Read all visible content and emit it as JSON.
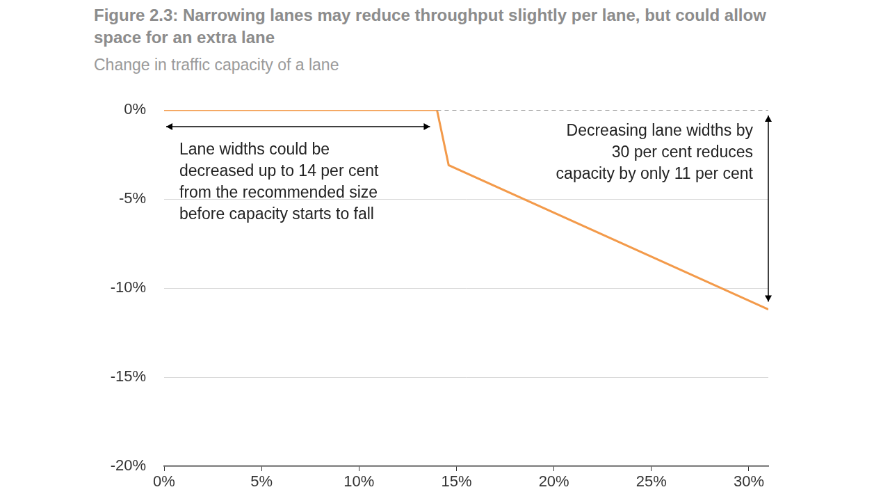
{
  "chart_data": {
    "type": "line",
    "title": "Figure 2.3: Narrowing lanes may reduce throughput slightly per lane, but could allow space for an extra lane",
    "subtitle": "Change in traffic capacity of a lane",
    "series": [
      {
        "x": [
          14,
          31
        ],
        "values": [
          0,
          0
        ],
        "color": "#999999",
        "line_style": "dashed"
      },
      {
        "x": [
          0,
          14,
          14.6,
          31
        ],
        "values": [
          0,
          0,
          -3.1,
          -11.2
        ],
        "color": "#f39a4a",
        "line_style": "solid"
      }
    ],
    "xlim": [
      0,
      31
    ],
    "xticks": [
      {
        "value": 0,
        "label": "0%"
      },
      {
        "value": 5,
        "label": "5%"
      },
      {
        "value": 10,
        "label": "10%"
      },
      {
        "value": 15,
        "label": "15%"
      },
      {
        "value": 20,
        "label": "20%"
      },
      {
        "value": 25,
        "label": "25%"
      },
      {
        "value": 30,
        "label": "30%"
      }
    ],
    "ylim": [
      -20,
      0
    ],
    "yticks": [
      {
        "value": 0,
        "label": "0%"
      },
      {
        "value": -5,
        "label": "-5%"
      },
      {
        "value": -10,
        "label": "-10%"
      },
      {
        "value": -15,
        "label": "-15%"
      },
      {
        "value": -20,
        "label": "-20%"
      }
    ],
    "grid": true,
    "annotations": [
      {
        "lines": [
          "Lane widths could be",
          "decreased up to 14 per cent",
          "from the recommended size",
          "before capacity starts to fall"
        ],
        "arrow_x": [
          0,
          14
        ]
      },
      {
        "lines": [
          "Decreasing lane widths by",
          "30 per cent reduces",
          "capacity by only 11 per cent"
        ],
        "arrow_y": [
          0,
          -11
        ]
      }
    ]
  }
}
